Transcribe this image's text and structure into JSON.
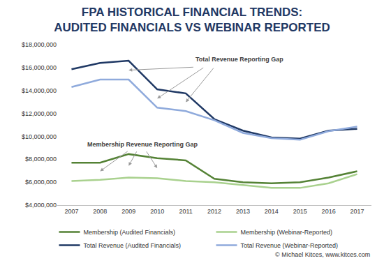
{
  "chart_data": {
    "type": "line",
    "title": "FPA HISTORICAL FINANCIAL TRENDS:\nAUDITED FINANCIALS VS WEBINAR REPORTED",
    "categories": [
      "2007",
      "2008",
      "2009",
      "2010",
      "2011",
      "2012",
      "2013",
      "2014",
      "2015",
      "2016",
      "2017"
    ],
    "series": [
      {
        "name": "Membership (Audited Financials)",
        "color": "#548235",
        "values": [
          7700000,
          7700000,
          8450000,
          8100000,
          7900000,
          6300000,
          6000000,
          5900000,
          6000000,
          6400000,
          6950000
        ]
      },
      {
        "name": "Membership (Webinar-Reported)",
        "color": "#a9d18e",
        "values": [
          6100000,
          6200000,
          6400000,
          6350000,
          6100000,
          6000000,
          5750000,
          5500000,
          5500000,
          5900000,
          6700000
        ]
      },
      {
        "name": "Total Revenue (Audited Financials)",
        "color": "#1f3864",
        "values": [
          15850000,
          16400000,
          16600000,
          14100000,
          13750000,
          11500000,
          10500000,
          9900000,
          9800000,
          10500000,
          10650000
        ]
      },
      {
        "name": "Total Revenue (Webinar-Reported)",
        "color": "#8faadc",
        "values": [
          14300000,
          14950000,
          14950000,
          12500000,
          12200000,
          11400000,
          10300000,
          9850000,
          9700000,
          10450000,
          10850000
        ]
      }
    ],
    "ylim": [
      4000000,
      18000000
    ],
    "yticks": [
      {
        "value": 4000000,
        "label": "$4,000,000"
      },
      {
        "value": 6000000,
        "label": "$6,000,000"
      },
      {
        "value": 8000000,
        "label": "$8,000,000"
      },
      {
        "value": 10000000,
        "label": "$10,000,000"
      },
      {
        "value": 12000000,
        "label": "$12,000,000"
      },
      {
        "value": 14000000,
        "label": "$14,000,000"
      },
      {
        "value": 16000000,
        "label": "$16,000,000"
      },
      {
        "value": 18000000,
        "label": "$18,000,000"
      }
    ],
    "grid": false,
    "legend": "bottom",
    "annotations": [
      "Total Revenue Reporting Gap",
      "Membership Revenue Reporting Gap",
      "© Michael Kitces, www.kitces.com"
    ]
  }
}
